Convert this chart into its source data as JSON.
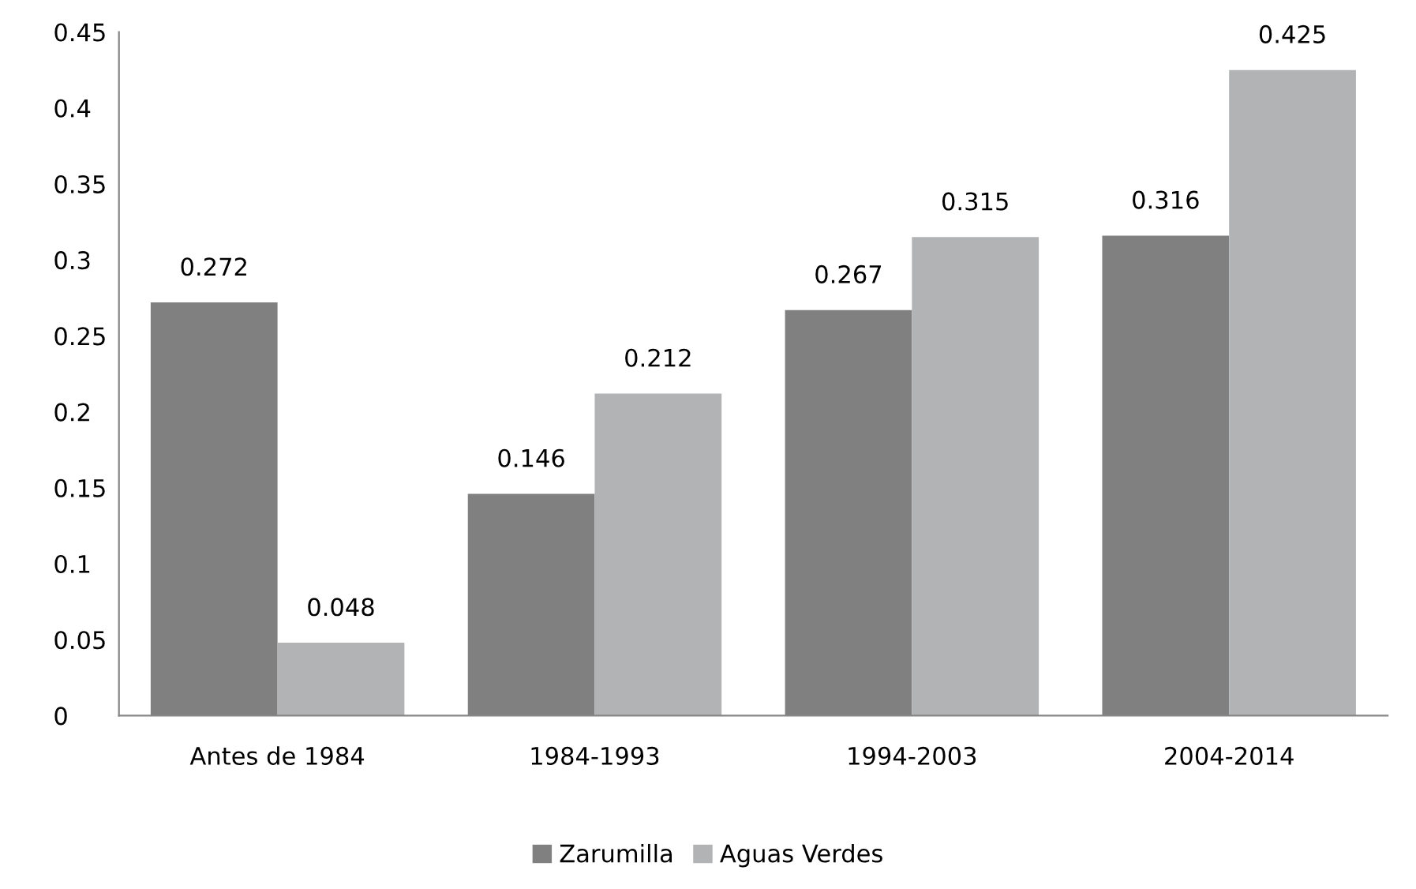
{
  "chart_data": {
    "type": "bar",
    "categories": [
      "Antes de 1984",
      "1984-1993",
      "1994-2003",
      "2004-2014"
    ],
    "series": [
      {
        "name": "Zarumilla",
        "color": "#808080",
        "values": [
          0.272,
          0.146,
          0.267,
          0.316
        ]
      },
      {
        "name": "Aguas Verdes",
        "color": "#b1b3b5",
        "values": [
          0.048,
          0.212,
          0.315,
          0.425
        ]
      }
    ],
    "ylim": [
      0,
      0.45
    ],
    "yticks": [
      0,
      0.05,
      0.1,
      0.15,
      0.2,
      0.25,
      0.3,
      0.35,
      0.4,
      0.45
    ],
    "grid": false,
    "legend": "bottom",
    "data_labels": true
  }
}
